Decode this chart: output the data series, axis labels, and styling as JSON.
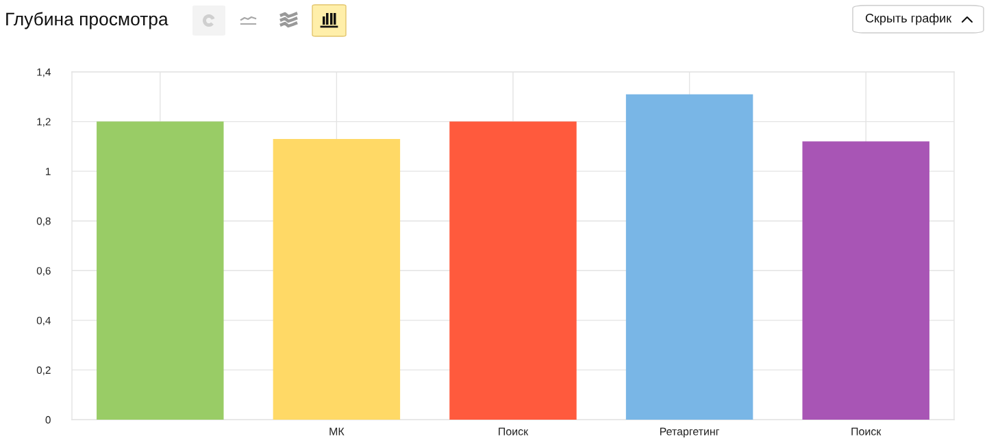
{
  "chart_data": {
    "type": "bar",
    "title": "Глубина просмотра",
    "categories": [
      null,
      "МК",
      "Поиск",
      "Ретаргетинг",
      "Поиск"
    ],
    "values": [
      1.2,
      1.13,
      1.2,
      1.31,
      1.12
    ],
    "colors": [
      "#99cc66",
      "#ffd966",
      "#ff5a3d",
      "#79b6e6",
      "#a855b5"
    ],
    "ylim": [
      0,
      1.4
    ],
    "yticks": [
      0,
      {
        "value": 0.2,
        "label": "0,2"
      },
      {
        "value": 0.4,
        "label": "0,4"
      },
      {
        "value": 0.6,
        "label": "0,6"
      },
      {
        "value": 0.8,
        "label": "0,8"
      },
      1,
      {
        "value": 1.2,
        "label": "1,2"
      },
      {
        "value": 1.4,
        "label": "1,4"
      }
    ],
    "grid": true,
    "annotations": [
      "Скрыть график"
    ]
  }
}
